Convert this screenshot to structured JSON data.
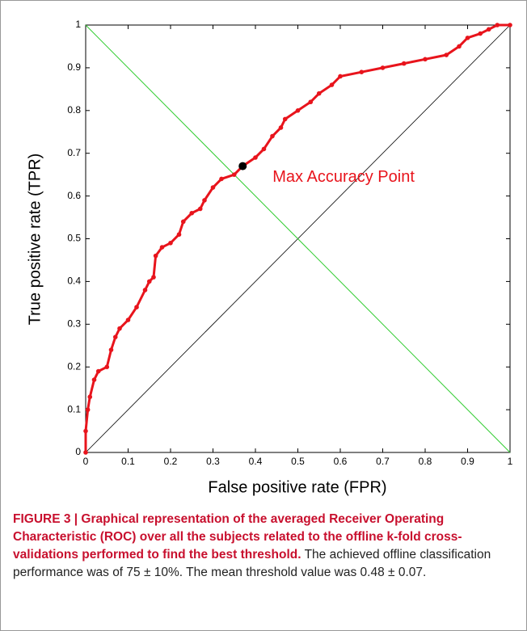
{
  "chart_data": {
    "type": "line",
    "x_label": "False positive rate (FPR)",
    "y_label": "True positive rate (TPR)",
    "x": [
      0,
      0,
      0.005,
      0.01,
      0.02,
      0.03,
      0.05,
      0.06,
      0.07,
      0.08,
      0.1,
      0.12,
      0.14,
      0.15,
      0.16,
      0.165,
      0.18,
      0.2,
      0.22,
      0.23,
      0.25,
      0.27,
      0.28,
      0.3,
      0.32,
      0.35,
      0.37,
      0.4,
      0.42,
      0.44,
      0.46,
      0.47,
      0.5,
      0.53,
      0.55,
      0.58,
      0.6,
      0.65,
      0.7,
      0.75,
      0.8,
      0.85,
      0.88,
      0.9,
      0.93,
      0.95,
      0.97,
      1
    ],
    "values": [
      0,
      0.05,
      0.1,
      0.13,
      0.17,
      0.19,
      0.2,
      0.24,
      0.27,
      0.29,
      0.31,
      0.34,
      0.38,
      0.4,
      0.41,
      0.46,
      0.48,
      0.49,
      0.51,
      0.54,
      0.56,
      0.57,
      0.59,
      0.62,
      0.64,
      0.65,
      0.67,
      0.69,
      0.71,
      0.74,
      0.76,
      0.78,
      0.8,
      0.82,
      0.84,
      0.86,
      0.88,
      0.89,
      0.9,
      0.91,
      0.92,
      0.93,
      0.95,
      0.97,
      0.98,
      0.99,
      1,
      1
    ],
    "color": "#e8141c",
    "annotation": {
      "text": "Max Accuracy Point",
      "x": 0.37,
      "y": 0.67,
      "color": "#e8141c"
    },
    "xlim": [
      0,
      1
    ],
    "ylim": [
      0,
      1
    ],
    "xticks": [
      0,
      0.1,
      0.2,
      0.3,
      0.4,
      0.5,
      0.6,
      0.7,
      0.8,
      0.9,
      1
    ],
    "yticks": [
      0,
      0.1,
      0.2,
      0.3,
      0.4,
      0.5,
      0.6,
      0.7,
      0.8,
      0.9,
      1
    ]
  },
  "caption": {
    "label": "FIGURE 3 | Graphical representation of the averaged Receiver Operating Characteristic (ROC) over all the subjects related to the offline k-fold cross-validations performed to find the best threshold.",
    "text": "The achieved offline classification performance was of 75 ± 10%. The mean threshold value was 0.48 ± 0.07."
  }
}
